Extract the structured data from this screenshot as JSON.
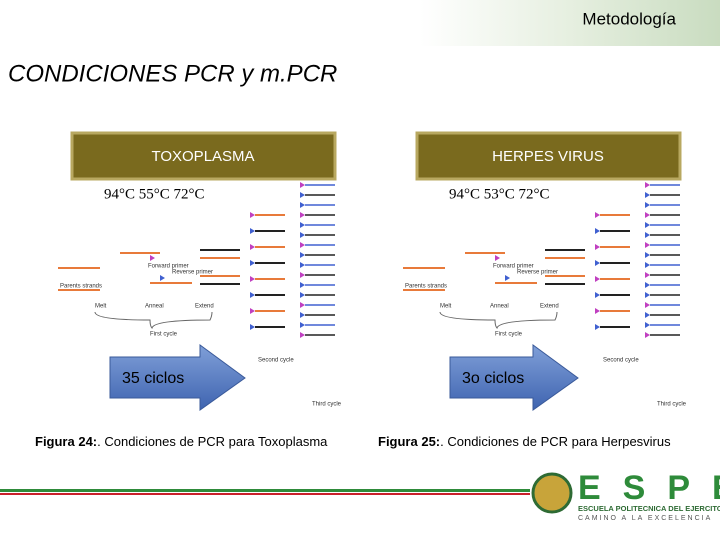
{
  "header": {
    "section": "Metodología",
    "title": "CONDICIONES PCR y m.PCR"
  },
  "panels": [
    {
      "label": "TOXOPLASMA",
      "temperatures": "94°C   55°C   72°C",
      "cycles": "35 ciclos",
      "diagram": {
        "parent": "Parents strands",
        "steps": [
          "Melt",
          "Anneal",
          "Extend"
        ],
        "primers": [
          "Forward primer",
          "Reverse primer"
        ],
        "cycles": [
          "First cycle",
          "Second cycle",
          "Third cycle"
        ]
      },
      "caption": {
        "label": "Figura 24:",
        "text": ". Condiciones de PCR para Toxoplasma"
      }
    },
    {
      "label": "HERPES VIRUS",
      "temperatures": "94°C   53°C   72°C",
      "cycles": "3o ciclos",
      "diagram": {
        "parent": "Parents strands",
        "steps": [
          "Melt",
          "Anneal",
          "Extend"
        ],
        "primers": [
          "Forward primer",
          "Reverse primer"
        ],
        "cycles": [
          "First cycle",
          "Second cycle",
          "Third cycle"
        ]
      },
      "caption": {
        "label": "Figura 25:",
        "text": ". Condiciones de PCR para Herpesvirus"
      }
    }
  ],
  "footer": {
    "logo": "ESPE",
    "institution": "ESCUELA POLITECNICA DEL EJERCITO",
    "motto": "CAMINO A LA EXCELENCIA"
  }
}
